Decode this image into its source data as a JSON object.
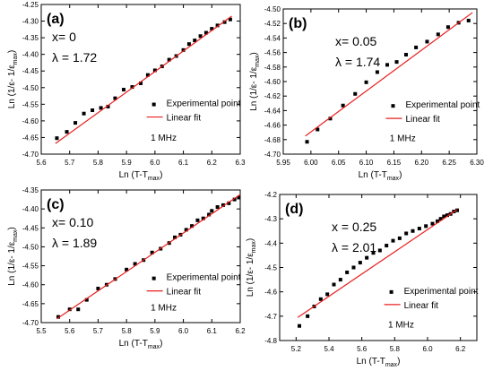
{
  "chart_data": [
    {
      "type": "scatter",
      "panel_label": "(a)",
      "annotations": [
        "x= 0",
        "λ = 1.72"
      ],
      "frequency_text": "1 MHz",
      "legend_position": "lower-right",
      "series": [
        {
          "name": "Experimental point",
          "kind": "points",
          "marker": "square",
          "color": "#000000",
          "x": [
            5.655,
            5.69,
            5.72,
            5.75,
            5.78,
            5.81,
            5.835,
            5.86,
            5.89,
            5.92,
            5.95,
            5.975,
            6.0,
            6.025,
            6.05,
            6.075,
            6.1,
            6.12,
            6.14,
            6.16,
            6.18,
            6.2,
            6.22,
            6.245,
            6.265
          ],
          "y": [
            -4.652,
            -4.633,
            -4.606,
            -4.578,
            -4.568,
            -4.561,
            -4.557,
            -4.532,
            -4.506,
            -4.498,
            -4.487,
            -4.462,
            -4.448,
            -4.436,
            -4.416,
            -4.405,
            -4.387,
            -4.369,
            -4.358,
            -4.345,
            -4.335,
            -4.323,
            -4.313,
            -4.303,
            -4.295
          ]
        },
        {
          "name": "Linear fit",
          "kind": "line",
          "color": "#e8201e",
          "x": [
            5.65,
            6.27
          ],
          "y": [
            -4.668,
            -4.285
          ]
        }
      ],
      "xlabel": "Ln (T-T",
      "xlabel_sub": "max",
      "xlabel_end": ")",
      "ylabel": "Ln (1/ε- 1/ε",
      "ylabel_sub": "max",
      "ylabel_end": ")",
      "xlim": [
        5.6,
        6.3
      ],
      "ylim": [
        -4.7,
        -4.25
      ],
      "xticks": [
        "5.6",
        "5.7",
        "5.8",
        "5.9",
        "6.0",
        "6.1",
        "6.2",
        "6.3"
      ],
      "yticks": [
        "-4.70",
        "-4.65",
        "-4.60",
        "-4.55",
        "-4.50",
        "-4.45",
        "-4.40",
        "-4.35",
        "-4.30",
        "-4.25"
      ]
    },
    {
      "type": "scatter",
      "panel_label": "(b)",
      "annotations": [
        "x= 0.05",
        "λ = 1.74"
      ],
      "frequency_text": "1 MHz",
      "legend_position": "lower-right",
      "series": [
        {
          "name": "Experimental point",
          "kind": "points",
          "marker": "square",
          "color": "#000000",
          "x": [
            5.993,
            6.012,
            6.035,
            6.058,
            6.08,
            6.1,
            6.12,
            6.138,
            6.155,
            6.172,
            6.19,
            6.21,
            6.23,
            6.248,
            6.267,
            6.285
          ],
          "y": [
            -4.683,
            -4.666,
            -4.651,
            -4.633,
            -4.617,
            -4.601,
            -4.587,
            -4.577,
            -4.573,
            -4.563,
            -4.553,
            -4.545,
            -4.535,
            -4.525,
            -4.519,
            -4.516
          ]
        },
        {
          "name": "Linear fit",
          "kind": "line",
          "color": "#e8201e",
          "x": [
            5.99,
            6.292
          ],
          "y": [
            -4.675,
            -4.505
          ]
        }
      ],
      "xlabel": "Ln (T-T",
      "xlabel_sub": "max",
      "xlabel_end": ")",
      "ylabel": "Ln (1/ε- 1/ε",
      "ylabel_sub": "max",
      "ylabel_end": ")",
      "xlim": [
        5.95,
        6.3
      ],
      "ylim": [
        -4.7,
        -4.5
      ],
      "xticks": [
        "5.95",
        "6.00",
        "6.05",
        "6.10",
        "6.15",
        "6.20",
        "6.25",
        "6.30"
      ],
      "yticks": [
        "-4.70",
        "-4.68",
        "-4.66",
        "-4.64",
        "-4.62",
        "-4.60",
        "-4.58",
        "-4.56",
        "-4.54",
        "-4.52",
        "-4.50"
      ]
    },
    {
      "type": "scatter",
      "panel_label": "(c)",
      "annotations": [
        "x= 0.10",
        "λ = 1.89"
      ],
      "frequency_text": "1 MHz",
      "legend_position": "lower-right",
      "series": [
        {
          "name": "Experimental point",
          "kind": "points",
          "marker": "square",
          "color": "#000000",
          "x": [
            5.56,
            5.6,
            5.63,
            5.66,
            5.7,
            5.73,
            5.76,
            5.8,
            5.83,
            5.86,
            5.89,
            5.92,
            5.95,
            5.97,
            5.99,
            6.01,
            6.03,
            6.05,
            6.07,
            6.09,
            6.1,
            6.12,
            6.14,
            6.16,
            6.18,
            6.195
          ],
          "y": [
            -4.685,
            -4.665,
            -4.665,
            -4.64,
            -4.61,
            -4.6,
            -4.585,
            -4.56,
            -4.545,
            -4.535,
            -4.515,
            -4.505,
            -4.49,
            -4.475,
            -4.468,
            -4.455,
            -4.445,
            -4.43,
            -4.425,
            -4.415,
            -4.405,
            -4.395,
            -4.39,
            -4.385,
            -4.375,
            -4.37
          ]
        },
        {
          "name": "Linear fit",
          "kind": "line",
          "color": "#e8201e",
          "x": [
            5.555,
            6.2
          ],
          "y": [
            -4.69,
            -4.362
          ]
        }
      ],
      "xlabel": "Ln (T-T",
      "xlabel_sub": "max",
      "xlabel_end": ")",
      "ylabel": "Ln (1/ε- 1/ε",
      "ylabel_sub": "max",
      "ylabel_end": ")",
      "xlim": [
        5.5,
        6.2
      ],
      "ylim": [
        -4.7,
        -4.35
      ],
      "xticks": [
        "5.5",
        "5.6",
        "5.7",
        "5.8",
        "5.9",
        "6.0",
        "6.1",
        "6.2"
      ],
      "yticks": [
        "-4.70",
        "-4.65",
        "-4.60",
        "-4.55",
        "-4.50",
        "-4.45",
        "-4.40",
        "-4.35"
      ]
    },
    {
      "type": "scatter",
      "panel_label": "(d)",
      "annotations": [
        "x = 0.25",
        "λ = 2.01"
      ],
      "frequency_text": "1 MHz",
      "legend_position": "lower-right",
      "series": [
        {
          "name": "Experimental point",
          "kind": "points",
          "marker": "square",
          "color": "#000000",
          "x": [
            5.22,
            5.27,
            5.31,
            5.35,
            5.39,
            5.43,
            5.47,
            5.51,
            5.55,
            5.59,
            5.63,
            5.67,
            5.71,
            5.75,
            5.79,
            5.83,
            5.87,
            5.91,
            5.95,
            5.99,
            6.03,
            6.06,
            6.08,
            6.1,
            6.12,
            6.14,
            6.16,
            6.18
          ],
          "y": [
            -4.74,
            -4.7,
            -4.66,
            -4.63,
            -4.61,
            -4.57,
            -4.55,
            -4.52,
            -4.5,
            -4.48,
            -4.46,
            -4.44,
            -4.43,
            -4.41,
            -4.39,
            -4.38,
            -4.36,
            -4.35,
            -4.34,
            -4.33,
            -4.32,
            -4.31,
            -4.3,
            -4.29,
            -4.285,
            -4.28,
            -4.27,
            -4.265
          ]
        },
        {
          "name": "Linear fit",
          "kind": "line",
          "color": "#e8201e",
          "x": [
            5.21,
            6.18
          ],
          "y": [
            -4.705,
            -4.262
          ]
        }
      ],
      "xlabel": "Ln (T-T",
      "xlabel_sub": "max",
      "xlabel_end": ")",
      "ylabel": "Ln (1/ε- 1/ε",
      "ylabel_sub": "max",
      "ylabel_end": ")",
      "xlim": [
        5.1,
        6.3
      ],
      "ylim": [
        -4.8,
        -4.2
      ],
      "xticks": [
        "5.2",
        "5.4",
        "5.6",
        "5.8",
        "6.0",
        "6.2"
      ],
      "yticks": [
        "-4.8",
        "-4.7",
        "-4.6",
        "-4.5",
        "-4.4",
        "-4.3",
        "-4.2"
      ]
    }
  ]
}
